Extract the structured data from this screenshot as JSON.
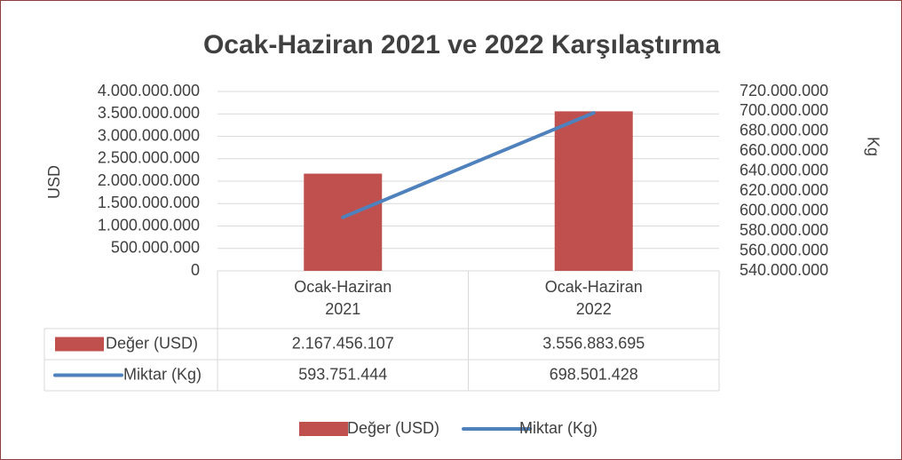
{
  "chart_data": {
    "type": "bar-line",
    "title": "Ocak-Haziran 2021 ve 2022 Karşılaştırma",
    "y_label": "USD",
    "y2_label": "Kg",
    "categories": [
      "Ocak-Haziran 2021",
      "Ocak-Haziran 2022"
    ],
    "series": [
      {
        "name": "Değer (USD)",
        "type": "bar",
        "color": "#c0504d",
        "values": [
          2167456107,
          3556883695
        ],
        "value_labels": [
          "2.167.456.107",
          "3.556.883.695"
        ]
      },
      {
        "name": "Miktar (Kg)",
        "type": "line",
        "axis": "y2",
        "color": "#4f81bd",
        "values": [
          593751444,
          698501428
        ],
        "value_labels": [
          "593.751.444",
          "698.501.428"
        ]
      }
    ],
    "ylim": [
      0,
      4000000000
    ],
    "yticks": [
      0,
      {
        "value": 500000000,
        "label": "500.000.000"
      },
      {
        "value": 1000000000,
        "label": "1.000.000.000"
      },
      {
        "value": 1500000000,
        "label": "1.500.000.000"
      },
      {
        "value": 2000000000,
        "label": "2.000.000.000"
      },
      {
        "value": 2500000000,
        "label": "2.500.000.000"
      },
      {
        "value": 3000000000,
        "label": "3.000.000.000"
      },
      {
        "value": 3500000000,
        "label": "3.500.000.000"
      },
      {
        "value": 4000000000,
        "label": "4.000.000.000"
      }
    ],
    "y2lim": [
      540000000,
      720000000
    ],
    "y2ticks": [
      {
        "value": 540000000,
        "label": "540.000.000"
      },
      {
        "value": 560000000,
        "label": "560.000.000"
      },
      {
        "value": 580000000,
        "label": "580.000.000"
      },
      {
        "value": 600000000,
        "label": "600.000.000"
      },
      {
        "value": 620000000,
        "label": "620.000.000"
      },
      {
        "value": 640000000,
        "label": "640.000.000"
      },
      {
        "value": 660000000,
        "label": "660.000.000"
      },
      {
        "value": 680000000,
        "label": "680.000.000"
      },
      {
        "value": 700000000,
        "label": "700.000.000"
      },
      {
        "value": 720000000,
        "label": "720.000.000"
      }
    ],
    "grid": true,
    "legend": "bottom",
    "data_table": true
  }
}
